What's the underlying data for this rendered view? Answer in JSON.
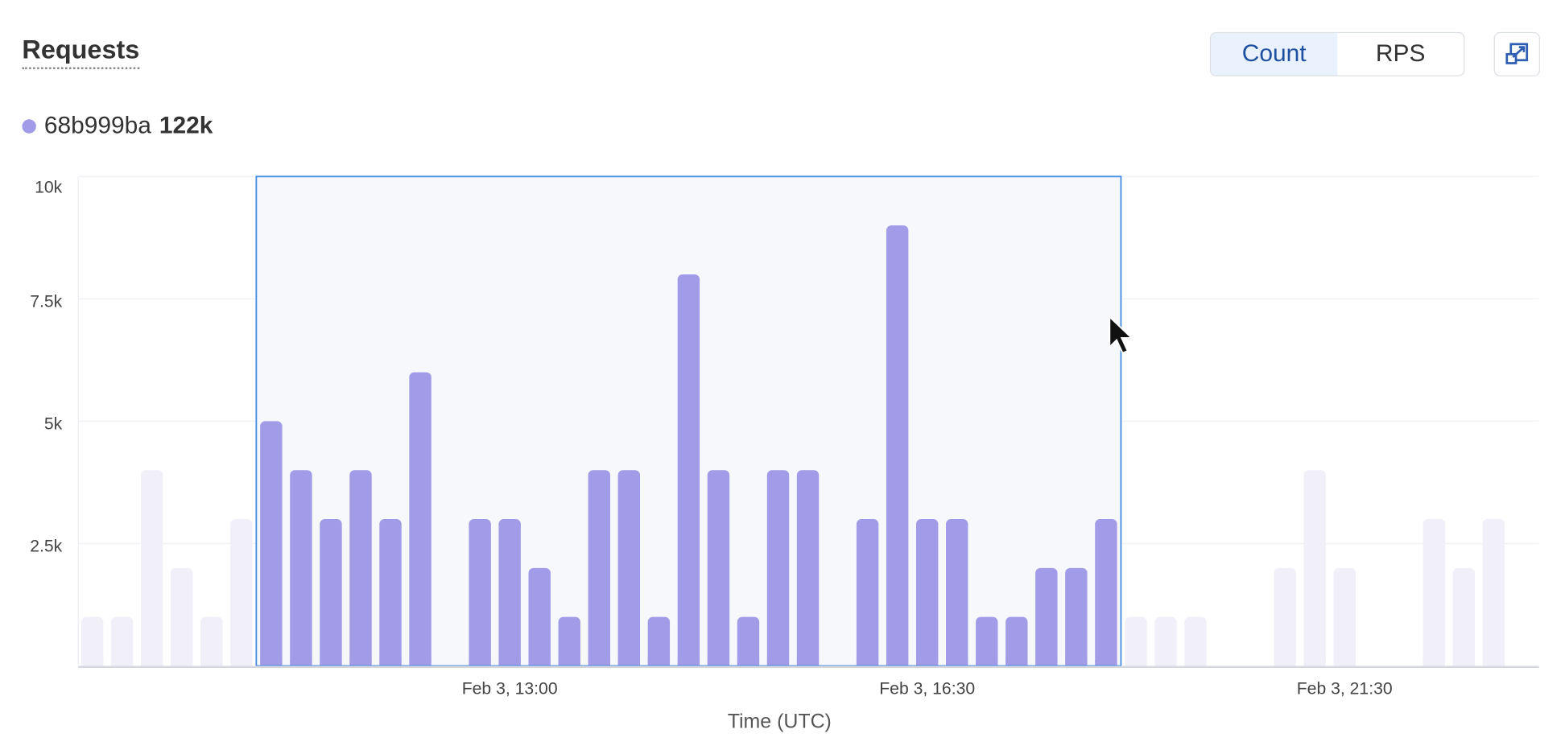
{
  "header": {
    "title": "Requests"
  },
  "toggle": {
    "options": [
      "Count",
      "RPS"
    ],
    "selected": "Count"
  },
  "expand_icon": "expand-icon",
  "legend": {
    "series_name": "68b999ba",
    "total": "122k",
    "color": "#a29be8"
  },
  "colors": {
    "bar": "#a29be8",
    "bar_faded": "#f1f0f8",
    "selection_border": "#4a90e2",
    "selection_fill": "#f7f8fb",
    "accent": "#1f4fa0"
  },
  "chart_data": {
    "type": "bar",
    "xlabel": "Time (UTC)",
    "ylabel": "",
    "ylim": [
      0,
      10000
    ],
    "y_ticks": [
      {
        "value": 2500,
        "label": "2.5k"
      },
      {
        "value": 5000,
        "label": "5k"
      },
      {
        "value": 7500,
        "label": "7.5k"
      },
      {
        "value": 10000,
        "label": "10k"
      }
    ],
    "x_ticks": [
      {
        "bar_index": 14,
        "label": "Feb 3, 13:00"
      },
      {
        "bar_index": 28,
        "label": "Feb 3, 16:30"
      },
      {
        "bar_index": 42,
        "label": "Feb 3, 21:30"
      }
    ],
    "grid": true,
    "series": [
      {
        "name": "68b999ba",
        "values": [
          1000,
          1000,
          4000,
          2000,
          1000,
          3000,
          5000,
          4000,
          3000,
          4000,
          3000,
          6000,
          0,
          3000,
          3000,
          2000,
          1000,
          4000,
          4000,
          1000,
          8000,
          4000,
          1000,
          4000,
          4000,
          0,
          3000,
          9000,
          3000,
          3000,
          1000,
          1000,
          2000,
          2000,
          3000,
          1000,
          1000,
          1000,
          0,
          0,
          2000,
          4000,
          2000,
          0,
          0,
          3000,
          2000,
          3000
        ]
      }
    ],
    "selection": {
      "start_bar": 6,
      "end_bar": 34
    }
  }
}
